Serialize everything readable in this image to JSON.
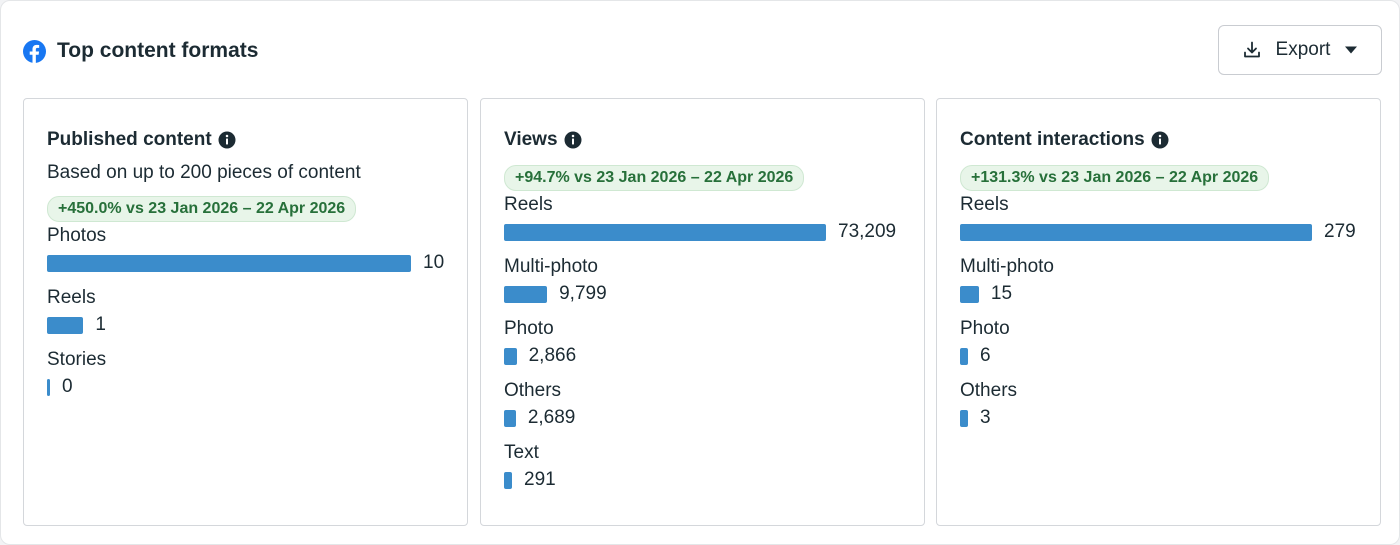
{
  "header": {
    "title": "Top content formats",
    "export_label": "Export",
    "brand_icon": "facebook-icon",
    "brand_color": "#1877f2"
  },
  "colors": {
    "bar": "#3b8ccb",
    "badge_bg": "#e8f5e9",
    "badge_text": "#27703a"
  },
  "cards": [
    {
      "title": "Published content",
      "subtitle": "Based on up to 200 pieces of content",
      "badge": "+450.0% vs 23 Jan 2026 – 22 Apr 2026",
      "max": 10,
      "rows": [
        {
          "label": "Photos",
          "value": 10,
          "display": "10"
        },
        {
          "label": "Reels",
          "value": 1,
          "display": "1"
        },
        {
          "label": "Stories",
          "value": 0,
          "display": "0"
        }
      ]
    },
    {
      "title": "Views",
      "subtitle": "",
      "badge": "+94.7% vs 23 Jan 2026 – 22 Apr 2026",
      "max": 73209,
      "rows": [
        {
          "label": "Reels",
          "value": 73209,
          "display": "73,209"
        },
        {
          "label": "Multi-photo",
          "value": 9799,
          "display": "9,799"
        },
        {
          "label": "Photo",
          "value": 2866,
          "display": "2,866"
        },
        {
          "label": "Others",
          "value": 2689,
          "display": "2,689"
        },
        {
          "label": "Text",
          "value": 291,
          "display": "291"
        }
      ]
    },
    {
      "title": "Content interactions",
      "subtitle": "",
      "badge": "+131.3% vs 23 Jan 2026 – 22 Apr 2026",
      "max": 279,
      "rows": [
        {
          "label": "Reels",
          "value": 279,
          "display": "279"
        },
        {
          "label": "Multi-photo",
          "value": 15,
          "display": "15"
        },
        {
          "label": "Photo",
          "value": 6,
          "display": "6"
        },
        {
          "label": "Others",
          "value": 3,
          "display": "3"
        }
      ]
    }
  ]
}
